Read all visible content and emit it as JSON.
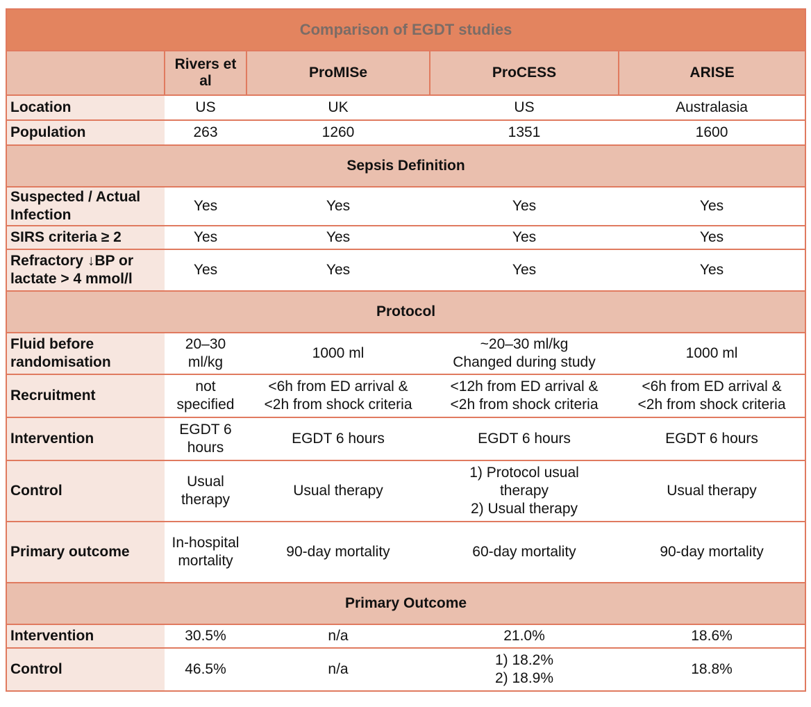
{
  "title": "Comparison of EGDT studies",
  "columns": [
    "",
    "Rivers et al",
    "ProMISe",
    "ProCESS",
    "ARISE"
  ],
  "top_rows": [
    {
      "label": "Location",
      "cells": [
        "US",
        "UK",
        "US",
        "Australasia"
      ]
    },
    {
      "label": "Population",
      "cells": [
        "263",
        "1260",
        "1351",
        "1600"
      ]
    }
  ],
  "sections": [
    {
      "title": "Sepsis Definition",
      "rows": [
        {
          "label": "Suspected / Actual Infection",
          "cells": [
            "Yes",
            "Yes",
            "Yes",
            "Yes"
          ]
        },
        {
          "label": "SIRS criteria ≥ 2",
          "cells": [
            "Yes",
            "Yes",
            "Yes",
            "Yes"
          ]
        },
        {
          "label": "Refractory ↓BP or lactate > 4 mmol/l",
          "cells": [
            "Yes",
            "Yes",
            "Yes",
            "Yes"
          ]
        }
      ]
    },
    {
      "title": "Protocol",
      "rows": [
        {
          "label": "Fluid before randomisation",
          "cells": [
            "20–30 ml/kg",
            "1000 ml",
            "~20–30 ml/kg\nChanged during study",
            "1000 ml"
          ]
        },
        {
          "label": "Recruitment",
          "cells": [
            "not specified",
            "<6h from ED arrival &\n<2h from shock criteria",
            "<12h from ED arrival &\n<2h from shock criteria",
            "<6h from ED arrival &\n<2h from shock criteria"
          ]
        },
        {
          "label": "Intervention",
          "cells": [
            "EGDT 6 hours",
            "EGDT 6 hours",
            "EGDT 6 hours",
            "EGDT 6 hours"
          ]
        },
        {
          "label": "Control",
          "cells": [
            "Usual therapy",
            "Usual therapy",
            "1) Protocol usual therapy\n2) Usual therapy",
            "Usual therapy"
          ]
        },
        {
          "label": "Primary outcome",
          "cells": [
            "In-hospital mortality",
            "90-day mortality",
            "60-day mortality",
            "90-day mortality"
          ]
        }
      ]
    },
    {
      "title": "Primary Outcome",
      "rows": [
        {
          "label": "Intervention",
          "cells": [
            "30.5%",
            "n/a",
            "21.0%",
            "18.6%"
          ]
        },
        {
          "label": "Control",
          "cells": [
            "46.5%",
            "n/a",
            "1) 18.2%\n2) 18.9%",
            "18.8%"
          ]
        }
      ]
    }
  ]
}
